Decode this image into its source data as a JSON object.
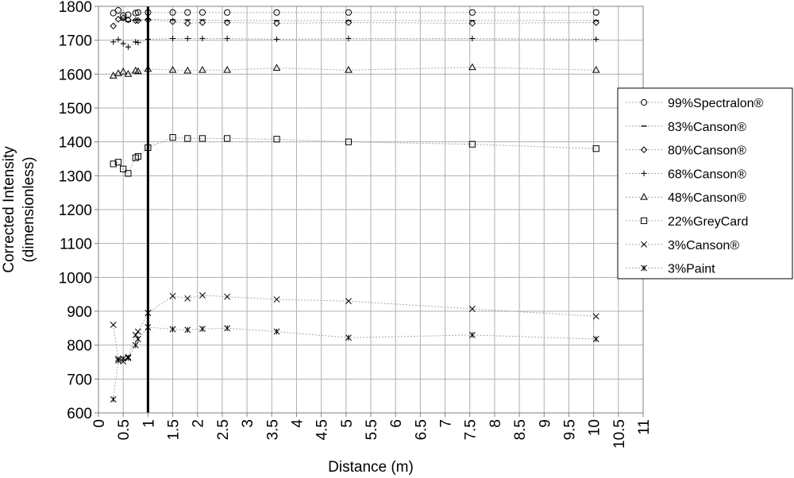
{
  "chart_data": {
    "type": "scatter",
    "title": "",
    "xlabel": "Distance (m)",
    "ylabel": "Corrected Intensity (dimensionless)",
    "xlim": [
      0,
      11
    ],
    "ylim": [
      600,
      1800
    ],
    "x_ticks": [
      "0",
      "0.5",
      "1",
      "1.5",
      "2",
      "2.5",
      "3",
      "3.5",
      "4",
      "4.5",
      "5",
      "5.5",
      "6",
      "6.5",
      "7",
      "7.5",
      "8",
      "8.5",
      "9",
      "9.5",
      "10",
      "10.5",
      "11"
    ],
    "y_ticks": [
      "600",
      "700",
      "800",
      "900",
      "1000",
      "1100",
      "1200",
      "1300",
      "1400",
      "1500",
      "1600",
      "1700",
      "1800"
    ],
    "grid": "horizontal and vertical",
    "legend_position": "right",
    "vertical_marker_x": 1,
    "series": [
      {
        "name": "99%Spectralon®",
        "marker": "circle",
        "x": [
          0.3,
          0.4,
          0.5,
          0.6,
          0.75,
          0.8,
          1,
          1.5,
          1.8,
          2.1,
          2.6,
          3.6,
          5.05,
          7.55,
          10.05
        ],
        "y": [
          1780,
          1788,
          1773,
          1775,
          1780,
          1782,
          1782,
          1782,
          1782,
          1782,
          1782,
          1782,
          1782,
          1782,
          1782
        ]
      },
      {
        "name": "83%Canson®",
        "marker": "dash",
        "x": [
          0.5,
          0.6,
          0.75,
          0.8,
          1,
          1.5,
          1.8,
          2.1,
          2.6,
          3.6,
          5.05,
          7.55,
          10.05
        ],
        "y": [
          1760,
          1755,
          1760,
          1760,
          1762,
          1760,
          1760,
          1760,
          1758,
          1758,
          1758,
          1758,
          1758
        ]
      },
      {
        "name": "80%Canson®",
        "marker": "diamond",
        "x": [
          0.3,
          0.4,
          0.5,
          0.6,
          0.75,
          0.8,
          1,
          1.5,
          1.8,
          2.1,
          2.6,
          3.6,
          5.05,
          7.55,
          10.05
        ],
        "y": [
          1742,
          1762,
          1766,
          1760,
          1758,
          1758,
          1760,
          1755,
          1750,
          1752,
          1752,
          1750,
          1752,
          1750,
          1752
        ]
      },
      {
        "name": "68%Canson®",
        "marker": "plus",
        "x": [
          0.3,
          0.4,
          0.5,
          0.6,
          0.75,
          0.8,
          1,
          1.5,
          1.8,
          2.1,
          2.6,
          3.6,
          5.05,
          7.55,
          10.05
        ],
        "y": [
          1695,
          1702,
          1690,
          1680,
          1695,
          1693,
          1703,
          1705,
          1705,
          1705,
          1705,
          1703,
          1705,
          1705,
          1703
        ]
      },
      {
        "name": "48%Canson®",
        "marker": "triangle",
        "x": [
          0.3,
          0.4,
          0.5,
          0.6,
          0.75,
          0.8,
          1,
          1.5,
          1.8,
          2.1,
          2.6,
          3.6,
          5.05,
          7.55,
          10.05
        ],
        "y": [
          1595,
          1602,
          1607,
          1600,
          1610,
          1608,
          1615,
          1612,
          1610,
          1612,
          1612,
          1618,
          1612,
          1620,
          1612
        ]
      },
      {
        "name": "22%GreyCard",
        "marker": "square",
        "x": [
          0.3,
          0.4,
          0.5,
          0.6,
          0.75,
          0.8,
          1,
          1.5,
          1.8,
          2.1,
          2.6,
          3.6,
          5.05,
          7.55,
          10.05
        ],
        "y": [
          1335,
          1340,
          1320,
          1307,
          1353,
          1357,
          1383,
          1413,
          1410,
          1410,
          1410,
          1408,
          1400,
          1393,
          1380
        ]
      },
      {
        "name": "3%Canson®",
        "marker": "x",
        "x": [
          0.3,
          0.4,
          0.5,
          0.6,
          0.75,
          0.8,
          1,
          1.5,
          1.8,
          2.1,
          2.6,
          3.6,
          5.05,
          7.55,
          10.05
        ],
        "y": [
          860,
          760,
          752,
          765,
          830,
          840,
          895,
          945,
          938,
          947,
          943,
          935,
          930,
          907,
          885
        ]
      },
      {
        "name": "3%Paint",
        "marker": "asterisk",
        "x": [
          0.3,
          0.4,
          0.5,
          0.6,
          0.75,
          0.8,
          1,
          1.5,
          1.8,
          2.1,
          2.6,
          3.6,
          5.05,
          7.55,
          10.05
        ],
        "y": [
          640,
          755,
          760,
          762,
          800,
          818,
          853,
          847,
          845,
          848,
          850,
          840,
          822,
          830,
          818
        ]
      }
    ]
  }
}
